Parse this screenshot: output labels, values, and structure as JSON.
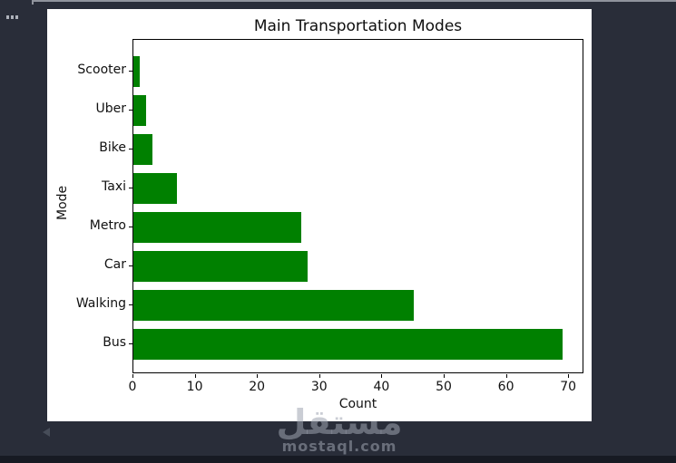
{
  "page": {
    "background_color": "#292d39",
    "panel_color": "#ffffff",
    "top_line_color": "#8f939c",
    "bottom_bar_color": "#171a23"
  },
  "watermark": {
    "logo_text": "مستقل",
    "site_text": "mostaql.com"
  },
  "chart_data": {
    "type": "bar",
    "orientation": "horizontal",
    "title": "Main Transportation Modes",
    "xlabel": "Count",
    "ylabel": "Mode",
    "categories": [
      "Scooter",
      "Uber",
      "Bike",
      "Taxi",
      "Metro",
      "Car",
      "Walking",
      "Bus"
    ],
    "values": [
      1,
      2,
      3,
      7,
      27,
      28,
      45,
      69
    ],
    "bar_color": "#008000",
    "xlim": [
      0,
      72.45
    ],
    "xticks": [
      0,
      10,
      20,
      30,
      40,
      50,
      60,
      70
    ],
    "grid": false,
    "legend": null,
    "plot_background": "#ffffff"
  }
}
